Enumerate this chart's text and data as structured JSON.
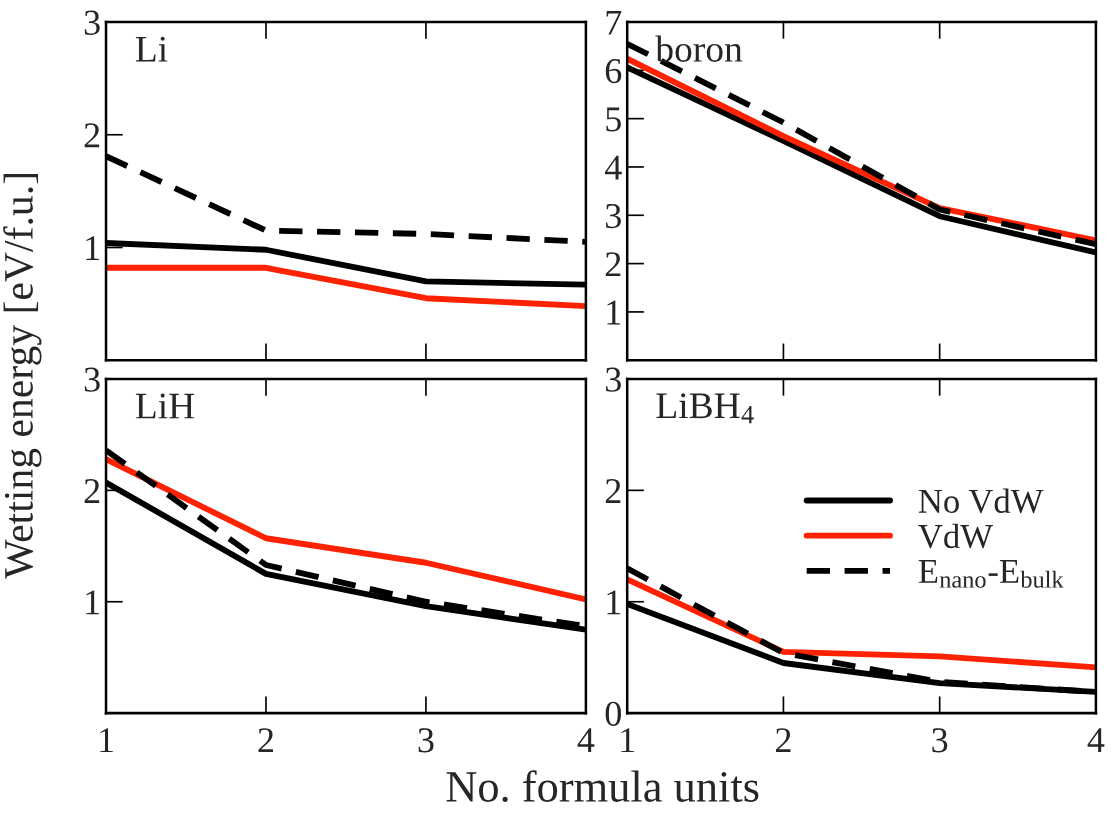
{
  "chart_data": [
    {
      "type": "line",
      "title": "Li",
      "ylabel": "Wetting energy [eV/f.u.]",
      "x": [
        1,
        2,
        3,
        4
      ],
      "xlim": [
        1,
        4
      ],
      "xticks": [
        1,
        2,
        3,
        4
      ],
      "ylim": [
        0,
        3
      ],
      "yticks": [
        1,
        2,
        3
      ],
      "tick_labels": "y",
      "grid": false,
      "legend": false,
      "series": [
        {
          "color": "#000000",
          "line_style": "solid",
          "values": [
            1.04,
            0.98,
            0.7,
            0.67
          ]
        },
        {
          "color": "#ff2200",
          "line_style": "solid",
          "values": [
            0.82,
            0.82,
            0.55,
            0.48
          ]
        },
        {
          "color": "#000000",
          "line_style": "dashed",
          "values": [
            1.81,
            1.15,
            1.12,
            1.05
          ]
        }
      ]
    },
    {
      "type": "line",
      "title": "boron",
      "x": [
        1,
        2,
        3,
        4
      ],
      "xlim": [
        1,
        4
      ],
      "xticks": [
        1,
        2,
        3,
        4
      ],
      "ylim": [
        0,
        7
      ],
      "yticks": [
        1,
        2,
        3,
        4,
        5,
        6,
        7
      ],
      "tick_labels": "y",
      "grid": false,
      "legend": false,
      "series": [
        {
          "color": "#000000",
          "line_style": "solid",
          "values": [
            6.06,
            4.54,
            2.98,
            2.23
          ]
        },
        {
          "color": "#ff2200",
          "line_style": "solid",
          "values": [
            6.24,
            4.64,
            3.15,
            2.48
          ]
        },
        {
          "color": "#000000",
          "line_style": "dashed",
          "values": [
            6.55,
            4.92,
            3.12,
            2.4
          ]
        }
      ]
    },
    {
      "type": "line",
      "title": "LiH",
      "x": [
        1,
        2,
        3,
        4
      ],
      "xlim": [
        1,
        4
      ],
      "xticks": [
        1,
        2,
        3,
        4
      ],
      "ylim": [
        0,
        3
      ],
      "yticks": [
        1,
        2,
        3
      ],
      "grid": false,
      "legend": false,
      "series": [
        {
          "color": "#000000",
          "line_style": "solid",
          "values": [
            2.07,
            1.25,
            0.96,
            0.75
          ]
        },
        {
          "color": "#ff2200",
          "line_style": "solid",
          "values": [
            2.28,
            1.57,
            1.35,
            1.02
          ]
        },
        {
          "color": "#000000",
          "line_style": "dashed",
          "values": [
            2.36,
            1.33,
            1.0,
            0.78
          ]
        }
      ]
    },
    {
      "type": "line",
      "title": "LiBH$_{4}$",
      "xlabel": "No. formula units",
      "x": [
        1,
        2,
        3,
        4
      ],
      "xlim": [
        1,
        4
      ],
      "xticks": [
        1,
        2,
        3,
        4
      ],
      "ylim": [
        0,
        3
      ],
      "yticks": [
        0,
        1,
        2,
        3
      ],
      "grid": false,
      "legend": "right",
      "series": [
        {
          "name": "No VdW",
          "color": "#000000",
          "line_style": "solid",
          "values": [
            0.98,
            0.45,
            0.27,
            0.19
          ]
        },
        {
          "name": "VdW",
          "color": "#ff2200",
          "line_style": "solid",
          "values": [
            1.2,
            0.55,
            0.51,
            0.41
          ]
        },
        {
          "name": "E$_{nano}$-E$_{bulk}$",
          "color": "#000000",
          "line_style": "dashed",
          "values": [
            1.3,
            0.54,
            0.28,
            0.19
          ]
        }
      ]
    }
  ]
}
